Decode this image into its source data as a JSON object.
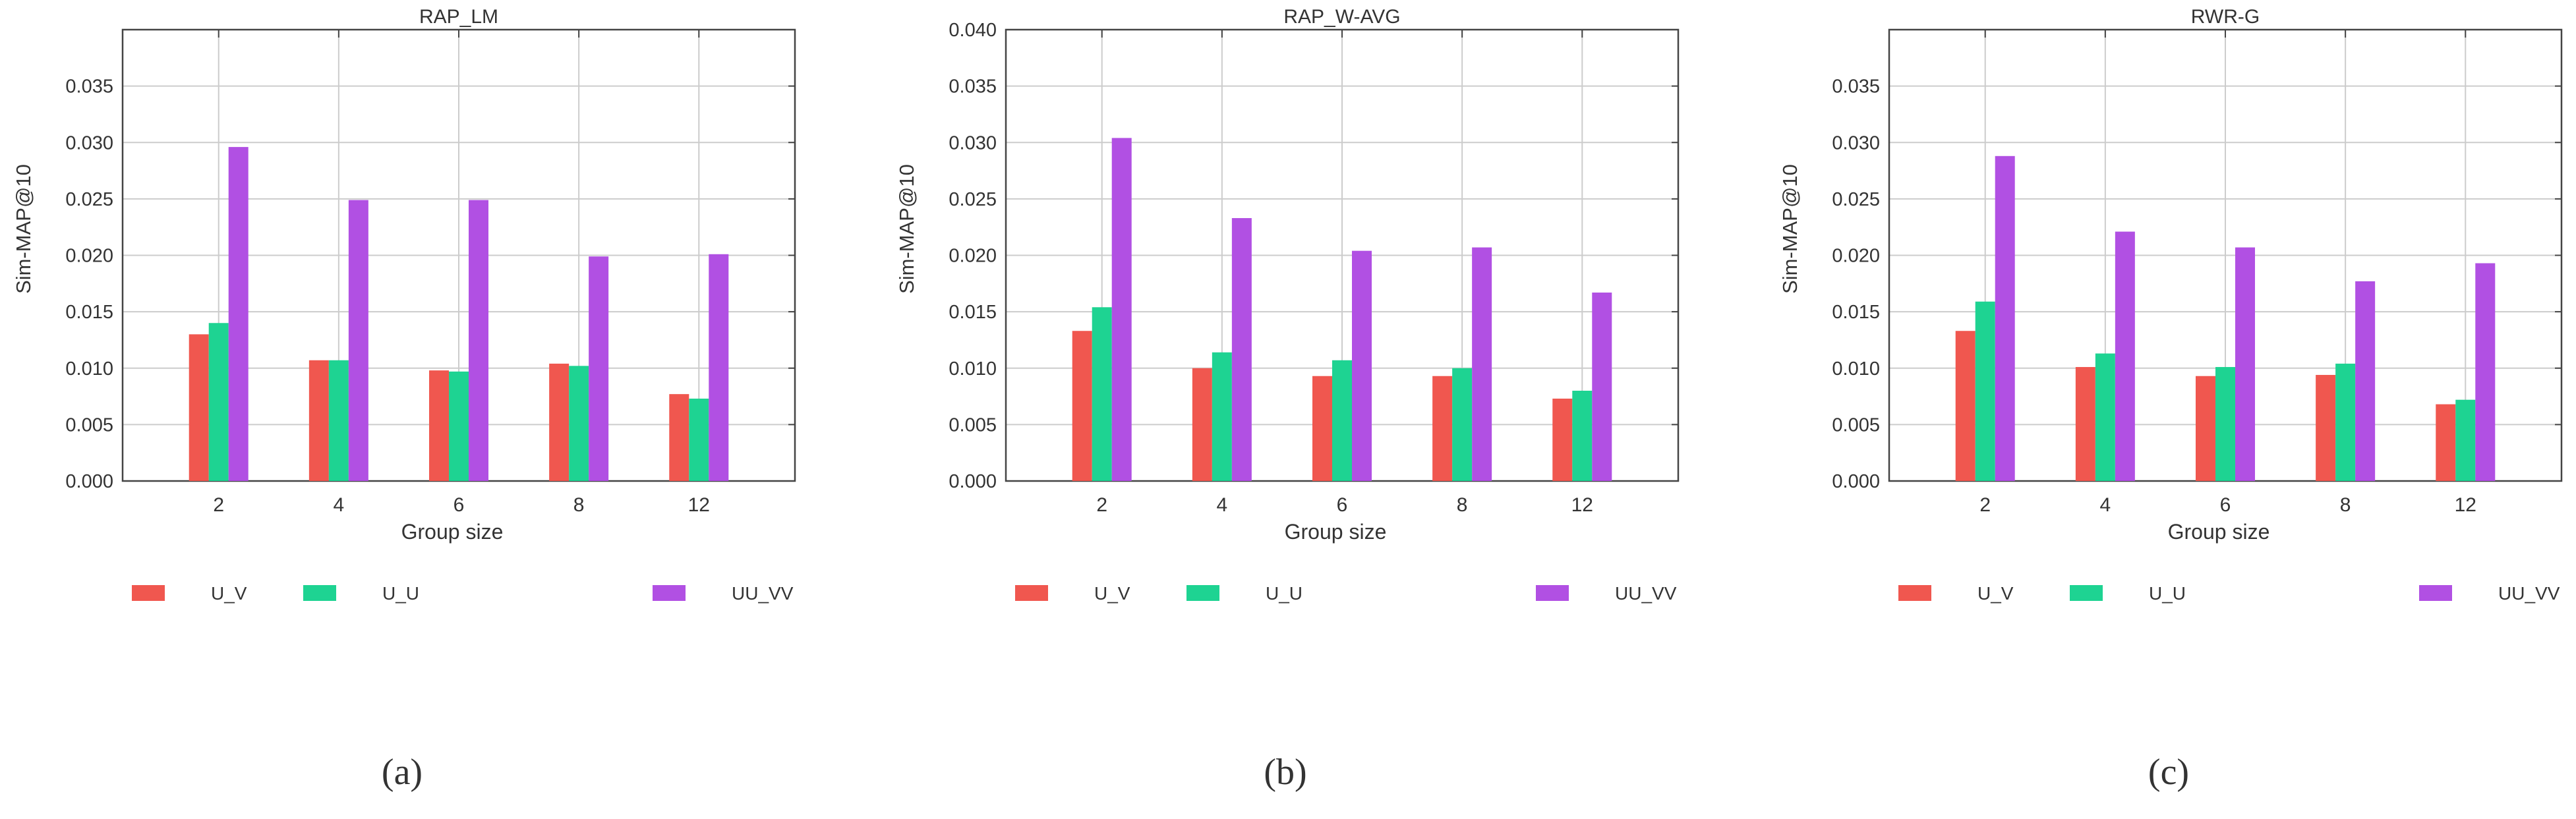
{
  "colors": {
    "U_V": "#f0574f",
    "U_U": "#1ed392",
    "UU_VV": "#b150e3",
    "grid": "#cccccc",
    "axis": "#444444"
  },
  "chart_data": [
    {
      "type": "bar",
      "caption": "(a)",
      "title": "RAP_LM",
      "xlabel": "Group size",
      "ylabel": "Sim-MAP@10",
      "categories": [
        "2",
        "4",
        "6",
        "8",
        "12"
      ],
      "ylim": [
        0,
        0.04
      ],
      "yticks": [
        "0.000",
        "0.005",
        "0.010",
        "0.015",
        "0.020",
        "0.025",
        "0.030",
        "0.035"
      ],
      "grid": true,
      "legend_position": "bottom",
      "series": [
        {
          "name": "U_V",
          "values": [
            0.013,
            0.0107,
            0.0098,
            0.0104,
            0.0077
          ]
        },
        {
          "name": "U_U",
          "values": [
            0.014,
            0.0107,
            0.0097,
            0.0102,
            0.0073
          ]
        },
        {
          "name": "UU_VV",
          "values": [
            0.0296,
            0.0249,
            0.0249,
            0.0199,
            0.0201
          ]
        }
      ]
    },
    {
      "type": "bar",
      "caption": "(b)",
      "title": "RAP_W-AVG",
      "xlabel": "Group size",
      "ylabel": "Sim-MAP@10",
      "categories": [
        "2",
        "4",
        "6",
        "8",
        "12"
      ],
      "ylim": [
        0,
        0.04
      ],
      "yticks": [
        "0.000",
        "0.005",
        "0.010",
        "0.015",
        "0.020",
        "0.025",
        "0.030",
        "0.035",
        "0.040"
      ],
      "grid": true,
      "legend_position": "bottom",
      "series": [
        {
          "name": "U_V",
          "values": [
            0.0133,
            0.01,
            0.0093,
            0.0093,
            0.0073
          ]
        },
        {
          "name": "U_U",
          "values": [
            0.0154,
            0.0114,
            0.0107,
            0.01,
            0.008
          ]
        },
        {
          "name": "UU_VV",
          "values": [
            0.0304,
            0.0233,
            0.0204,
            0.0207,
            0.0167
          ]
        }
      ]
    },
    {
      "type": "bar",
      "caption": "(c)",
      "title": "RWR-G",
      "xlabel": "Group size",
      "ylabel": "Sim-MAP@10",
      "categories": [
        "2",
        "4",
        "6",
        "8",
        "12"
      ],
      "ylim": [
        0,
        0.04
      ],
      "yticks": [
        "0.000",
        "0.005",
        "0.010",
        "0.015",
        "0.020",
        "0.025",
        "0.030",
        "0.035"
      ],
      "grid": true,
      "legend_position": "bottom",
      "series": [
        {
          "name": "U_V",
          "values": [
            0.0133,
            0.0101,
            0.0093,
            0.0094,
            0.0068
          ]
        },
        {
          "name": "U_U",
          "values": [
            0.0159,
            0.0113,
            0.0101,
            0.0104,
            0.0072
          ]
        },
        {
          "name": "UU_VV",
          "values": [
            0.0288,
            0.0221,
            0.0207,
            0.0177,
            0.0193
          ]
        }
      ]
    }
  ]
}
